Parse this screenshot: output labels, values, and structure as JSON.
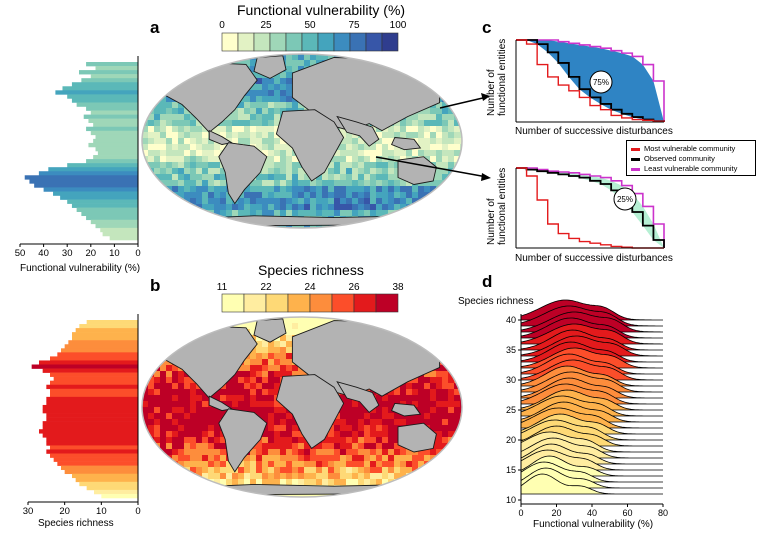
{
  "panels": {
    "a": {
      "letter": "a",
      "title": "Functional vulnerability (%)",
      "scale_ticks": [
        "0",
        "25",
        "50",
        "75",
        "100"
      ],
      "scale_colors": [
        "#ffffcc",
        "#e2f2c4",
        "#c4e6bd",
        "#9fd7b8",
        "#7cc8b6",
        "#5bb8b8",
        "#44a4bd",
        "#3c8cbf",
        "#3a72b4",
        "#3756a8",
        "#2f3d8e"
      ],
      "latitudinal_profile": {
        "xlabel": "Functional vulnerability (%)",
        "ticks": [
          "50",
          "40",
          "30",
          "20",
          "10",
          "0"
        ]
      }
    },
    "b": {
      "letter": "b",
      "title": "Species richness",
      "scale_ticks": [
        "11",
        "22",
        "24",
        "26",
        "38"
      ],
      "scale_colors": [
        "#ffffb2",
        "#ffeda0",
        "#fed976",
        "#feb24c",
        "#fd8d3c",
        "#fc4e2a",
        "#e31a1c",
        "#bd0026"
      ],
      "latitudinal_profile": {
        "xlabel": "Species richness",
        "ticks": [
          "30",
          "20",
          "10",
          "0"
        ]
      }
    },
    "c": {
      "letter": "c",
      "ylabel_line1": "Number of",
      "ylabel_line2": "functional entities",
      "xlabel": "Number of successive disturbances",
      "top_badge": "75%",
      "bottom_badge": "25%",
      "legend": [
        {
          "label": "Most vulnerable community",
          "color": "#e31a1c"
        },
        {
          "label": "Observed community",
          "color": "#000000"
        },
        {
          "label": "Least vulnerable community",
          "color": "#cc33cc"
        }
      ]
    },
    "d": {
      "letter": "d",
      "ylabel": "Species richness",
      "xlabel": "Functional vulnerability (%)",
      "xticks": [
        "0",
        "20",
        "40",
        "60",
        "80"
      ],
      "yticks": [
        "10",
        "15",
        "20",
        "25",
        "30",
        "35",
        "40"
      ]
    }
  },
  "chart_data": [
    {
      "type": "heatmap",
      "title": "Functional vulnerability (%)",
      "colorbar_range": [
        0,
        100
      ],
      "colorbar_ticks": [
        0,
        25,
        50,
        75,
        100
      ]
    },
    {
      "type": "bar",
      "orientation": "horizontal",
      "xlabel": "Functional vulnerability (%)",
      "xlim": [
        50,
        0
      ],
      "values": [
        22,
        18,
        25,
        20,
        24,
        28,
        32,
        35,
        30,
        28,
        26,
        22,
        20,
        23,
        21,
        19,
        22,
        20,
        18,
        19,
        21,
        18,
        17,
        19,
        22,
        30,
        38,
        42,
        48,
        46,
        44,
        40,
        36,
        33,
        30,
        28,
        26,
        24,
        22,
        20,
        18,
        16,
        15,
        12
      ]
    },
    {
      "type": "heatmap",
      "title": "Species richness",
      "colorbar_ticks": [
        11,
        22,
        24,
        26,
        38
      ]
    },
    {
      "type": "bar",
      "orientation": "horizontal",
      "xlabel": "Species richness",
      "xlim": [
        30,
        0
      ],
      "values": [
        14,
        16,
        17,
        18,
        18,
        19,
        20,
        21,
        22,
        24,
        27,
        29,
        26,
        24,
        23,
        24,
        25,
        24,
        24,
        25,
        25,
        26,
        26,
        25,
        25,
        26,
        26,
        27,
        26,
        25,
        25,
        24,
        25,
        24,
        23,
        22,
        21,
        20,
        18,
        17,
        16,
        14,
        12,
        10
      ]
    },
    {
      "type": "line",
      "xlabel": "Number of successive disturbances",
      "ylabel": "Number of functional entities",
      "annotation": "75%",
      "series": [
        {
          "name": "Most vulnerable community",
          "values": [
            100,
            95,
            70,
            55,
            45,
            38,
            30,
            20,
            15,
            8,
            5,
            3,
            2,
            1,
            0
          ]
        },
        {
          "name": "Observed community",
          "values": [
            100,
            100,
            95,
            85,
            72,
            55,
            40,
            30,
            22,
            15,
            10,
            6,
            3,
            1,
            0
          ]
        },
        {
          "name": "Least vulnerable community",
          "values": [
            100,
            100,
            100,
            100,
            98,
            96,
            94,
            92,
            90,
            87,
            84,
            80,
            70,
            50,
            0
          ]
        }
      ]
    },
    {
      "type": "line",
      "xlabel": "Number of successive disturbances",
      "ylabel": "Number of functional entities",
      "annotation": "25%",
      "series": [
        {
          "name": "Most vulnerable community",
          "values": [
            100,
            90,
            60,
            30,
            18,
            12,
            8,
            6,
            4,
            2,
            1,
            0,
            0,
            0,
            0
          ]
        },
        {
          "name": "Observed community",
          "values": [
            100,
            98,
            96,
            94,
            92,
            90,
            88,
            84,
            80,
            72,
            60,
            45,
            28,
            10,
            0
          ]
        },
        {
          "name": "Least vulnerable community",
          "values": [
            100,
            100,
            98,
            96,
            95,
            94,
            92,
            90,
            88,
            84,
            78,
            68,
            52,
            30,
            0
          ]
        }
      ]
    },
    {
      "type": "area",
      "subtype": "ridgeline",
      "xlabel": "Functional vulnerability (%)",
      "ylabel": "Species richness",
      "xlim": [
        0,
        80
      ],
      "ylim": [
        10,
        40
      ],
      "ridges": [
        {
          "richness": 11,
          "peak": 12,
          "width": 9
        },
        {
          "richness": 12,
          "peak": 14,
          "width": 10
        },
        {
          "richness": 13,
          "peak": 13,
          "width": 11
        },
        {
          "richness": 14,
          "peak": 16,
          "width": 10
        },
        {
          "richness": 15,
          "peak": 15,
          "width": 12
        },
        {
          "richness": 16,
          "peak": 17,
          "width": 11
        },
        {
          "richness": 17,
          "peak": 18,
          "width": 12
        },
        {
          "richness": 18,
          "peak": 16,
          "width": 13
        },
        {
          "richness": 19,
          "peak": 20,
          "width": 12
        },
        {
          "richness": 20,
          "peak": 19,
          "width": 13
        },
        {
          "richness": 21,
          "peak": 22,
          "width": 12
        },
        {
          "richness": 22,
          "peak": 21,
          "width": 13
        },
        {
          "richness": 23,
          "peak": 24,
          "width": 12
        },
        {
          "richness": 24,
          "peak": 23,
          "width": 13
        },
        {
          "richness": 25,
          "peak": 26,
          "width": 12
        },
        {
          "richness": 26,
          "peak": 25,
          "width": 13
        },
        {
          "richness": 27,
          "peak": 27,
          "width": 12
        },
        {
          "richness": 28,
          "peak": 28,
          "width": 13
        },
        {
          "richness": 29,
          "peak": 26,
          "width": 12
        },
        {
          "richness": 30,
          "peak": 29,
          "width": 13
        },
        {
          "richness": 31,
          "peak": 27,
          "width": 12
        },
        {
          "richness": 32,
          "peak": 30,
          "width": 13
        },
        {
          "richness": 33,
          "peak": 28,
          "width": 12
        },
        {
          "richness": 34,
          "peak": 31,
          "width": 13
        },
        {
          "richness": 35,
          "peak": 29,
          "width": 12
        },
        {
          "richness": 36,
          "peak": 30,
          "width": 14
        },
        {
          "richness": 37,
          "peak": 28,
          "width": 13
        },
        {
          "richness": 38,
          "peak": 30,
          "width": 14
        },
        {
          "richness": 39,
          "peak": 27,
          "width": 14
        },
        {
          "richness": 40,
          "peak": 25,
          "width": 14
        }
      ]
    }
  ]
}
